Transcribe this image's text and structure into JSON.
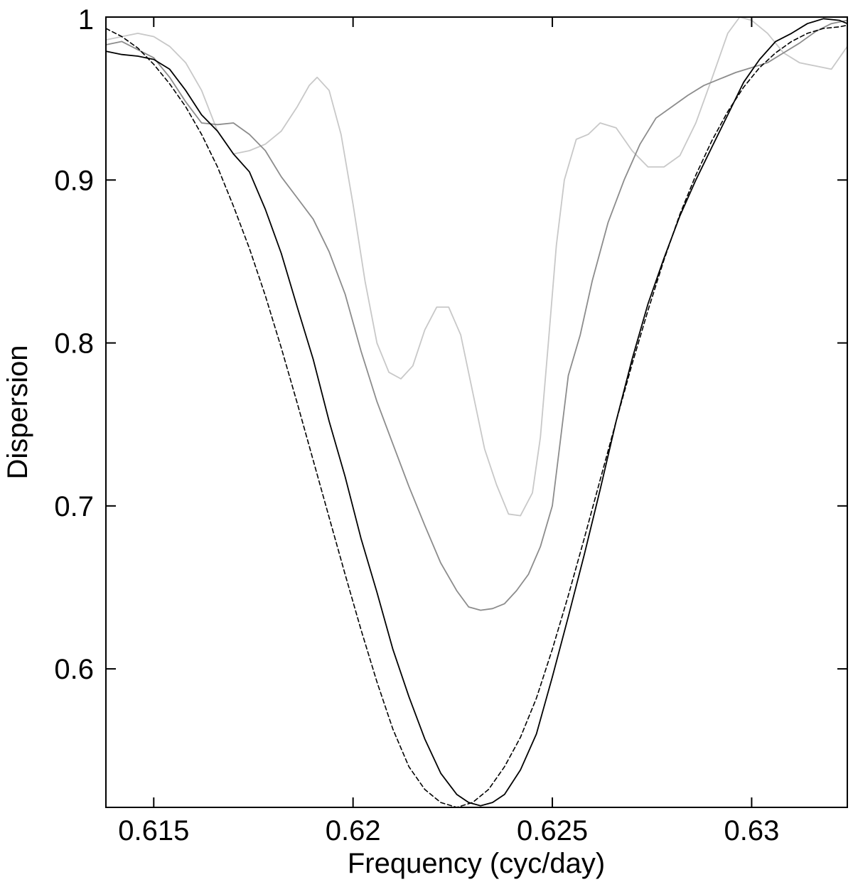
{
  "chart_data": {
    "type": "line",
    "title": "",
    "xlabel": "Frequency (cyc/day)",
    "ylabel": "Dispersion",
    "xlim": [
      0.6138,
      0.6324
    ],
    "ylim": [
      0.515,
      1.0
    ],
    "grid": false,
    "legend": "none",
    "x_ticks": [
      0.615,
      0.62,
      0.625,
      0.63
    ],
    "x_tick_labels": [
      "0.615",
      "0.62",
      "0.625",
      "0.63"
    ],
    "y_ticks": [
      0.6,
      0.7,
      0.8,
      0.9,
      1.0
    ],
    "y_tick_labels": [
      "0.6",
      "0.7",
      "0.8",
      "0.9",
      "1"
    ],
    "series": [
      {
        "style": "solid",
        "color": "#c8c8c8",
        "points": [
          [
            0.6138,
            0.986
          ],
          [
            0.6142,
            0.988
          ],
          [
            0.6146,
            0.99
          ],
          [
            0.615,
            0.988
          ],
          [
            0.6154,
            0.982
          ],
          [
            0.6158,
            0.972
          ],
          [
            0.6162,
            0.955
          ],
          [
            0.6166,
            0.93
          ],
          [
            0.617,
            0.916
          ],
          [
            0.6174,
            0.918
          ],
          [
            0.6178,
            0.922
          ],
          [
            0.6182,
            0.93
          ],
          [
            0.6186,
            0.945
          ],
          [
            0.6189,
            0.958
          ],
          [
            0.6191,
            0.963
          ],
          [
            0.6194,
            0.955
          ],
          [
            0.6197,
            0.928
          ],
          [
            0.62,
            0.885
          ],
          [
            0.6203,
            0.838
          ],
          [
            0.6206,
            0.8
          ],
          [
            0.6209,
            0.782
          ],
          [
            0.6212,
            0.778
          ],
          [
            0.6215,
            0.786
          ],
          [
            0.6218,
            0.808
          ],
          [
            0.6221,
            0.822
          ],
          [
            0.6224,
            0.822
          ],
          [
            0.6227,
            0.805
          ],
          [
            0.623,
            0.77
          ],
          [
            0.6233,
            0.735
          ],
          [
            0.6236,
            0.713
          ],
          [
            0.6239,
            0.695
          ],
          [
            0.6242,
            0.694
          ],
          [
            0.6245,
            0.708
          ],
          [
            0.6247,
            0.742
          ],
          [
            0.6249,
            0.8
          ],
          [
            0.6251,
            0.86
          ],
          [
            0.6253,
            0.9
          ],
          [
            0.6256,
            0.925
          ],
          [
            0.6259,
            0.928
          ],
          [
            0.6262,
            0.935
          ],
          [
            0.6266,
            0.932
          ],
          [
            0.627,
            0.918
          ],
          [
            0.6274,
            0.908
          ],
          [
            0.6278,
            0.908
          ],
          [
            0.6282,
            0.915
          ],
          [
            0.6286,
            0.935
          ],
          [
            0.629,
            0.962
          ],
          [
            0.6294,
            0.99
          ],
          [
            0.6297,
            1.0
          ],
          [
            0.63,
            0.998
          ],
          [
            0.6304,
            0.99
          ],
          [
            0.6308,
            0.978
          ],
          [
            0.6312,
            0.972
          ],
          [
            0.6316,
            0.97
          ],
          [
            0.632,
            0.968
          ],
          [
            0.6324,
            0.982
          ]
        ]
      },
      {
        "style": "solid",
        "color": "#8c8c8c",
        "points": [
          [
            0.6138,
            0.983
          ],
          [
            0.6142,
            0.985
          ],
          [
            0.6146,
            0.98
          ],
          [
            0.615,
            0.975
          ],
          [
            0.6154,
            0.963
          ],
          [
            0.6158,
            0.948
          ],
          [
            0.6162,
            0.935
          ],
          [
            0.6166,
            0.934
          ],
          [
            0.617,
            0.935
          ],
          [
            0.6174,
            0.928
          ],
          [
            0.6178,
            0.918
          ],
          [
            0.6182,
            0.902
          ],
          [
            0.6186,
            0.889
          ],
          [
            0.619,
            0.876
          ],
          [
            0.6194,
            0.856
          ],
          [
            0.6198,
            0.83
          ],
          [
            0.6202,
            0.795
          ],
          [
            0.6206,
            0.764
          ],
          [
            0.621,
            0.738
          ],
          [
            0.6214,
            0.712
          ],
          [
            0.6218,
            0.688
          ],
          [
            0.6222,
            0.665
          ],
          [
            0.6226,
            0.648
          ],
          [
            0.6229,
            0.638
          ],
          [
            0.6232,
            0.636
          ],
          [
            0.6235,
            0.637
          ],
          [
            0.6238,
            0.64
          ],
          [
            0.6241,
            0.648
          ],
          [
            0.6244,
            0.658
          ],
          [
            0.6247,
            0.675
          ],
          [
            0.625,
            0.7
          ],
          [
            0.6252,
            0.74
          ],
          [
            0.6254,
            0.78
          ],
          [
            0.6257,
            0.805
          ],
          [
            0.626,
            0.838
          ],
          [
            0.6264,
            0.874
          ],
          [
            0.6268,
            0.9
          ],
          [
            0.6272,
            0.922
          ],
          [
            0.6276,
            0.938
          ],
          [
            0.628,
            0.945
          ],
          [
            0.6284,
            0.952
          ],
          [
            0.6288,
            0.958
          ],
          [
            0.6292,
            0.962
          ],
          [
            0.6296,
            0.966
          ],
          [
            0.63,
            0.969
          ],
          [
            0.6304,
            0.972
          ],
          [
            0.6308,
            0.978
          ],
          [
            0.6312,
            0.984
          ],
          [
            0.6316,
            0.991
          ],
          [
            0.632,
            0.996
          ],
          [
            0.6324,
            0.998
          ]
        ]
      },
      {
        "style": "solid",
        "color": "#000000",
        "points": [
          [
            0.6138,
            0.979
          ],
          [
            0.6142,
            0.977
          ],
          [
            0.6146,
            0.976
          ],
          [
            0.615,
            0.974
          ],
          [
            0.6154,
            0.968
          ],
          [
            0.6158,
            0.955
          ],
          [
            0.6162,
            0.94
          ],
          [
            0.6166,
            0.93
          ],
          [
            0.617,
            0.916
          ],
          [
            0.6174,
            0.905
          ],
          [
            0.6178,
            0.882
          ],
          [
            0.6182,
            0.855
          ],
          [
            0.6186,
            0.822
          ],
          [
            0.619,
            0.79
          ],
          [
            0.6194,
            0.752
          ],
          [
            0.6198,
            0.718
          ],
          [
            0.6202,
            0.68
          ],
          [
            0.6206,
            0.647
          ],
          [
            0.621,
            0.612
          ],
          [
            0.6214,
            0.583
          ],
          [
            0.6218,
            0.557
          ],
          [
            0.6222,
            0.536
          ],
          [
            0.6226,
            0.523
          ],
          [
            0.6229,
            0.518
          ],
          [
            0.6232,
            0.516
          ],
          [
            0.6235,
            0.518
          ],
          [
            0.6238,
            0.523
          ],
          [
            0.6242,
            0.538
          ],
          [
            0.6246,
            0.56
          ],
          [
            0.625,
            0.595
          ],
          [
            0.6254,
            0.632
          ],
          [
            0.6258,
            0.67
          ],
          [
            0.6262,
            0.71
          ],
          [
            0.6266,
            0.752
          ],
          [
            0.627,
            0.79
          ],
          [
            0.6274,
            0.824
          ],
          [
            0.6278,
            0.852
          ],
          [
            0.6282,
            0.878
          ],
          [
            0.6286,
            0.9
          ],
          [
            0.629,
            0.92
          ],
          [
            0.6294,
            0.94
          ],
          [
            0.6298,
            0.96
          ],
          [
            0.6302,
            0.974
          ],
          [
            0.6306,
            0.985
          ],
          [
            0.631,
            0.99
          ],
          [
            0.6314,
            0.996
          ],
          [
            0.6318,
            0.999
          ],
          [
            0.6322,
            0.998
          ],
          [
            0.6324,
            0.996
          ]
        ]
      },
      {
        "style": "dashed",
        "color": "#000000",
        "points": [
          [
            0.6138,
            0.993
          ],
          [
            0.6142,
            0.988
          ],
          [
            0.6146,
            0.981
          ],
          [
            0.615,
            0.971
          ],
          [
            0.6154,
            0.959
          ],
          [
            0.6158,
            0.945
          ],
          [
            0.6162,
            0.928
          ],
          [
            0.6166,
            0.908
          ],
          [
            0.617,
            0.884
          ],
          [
            0.6174,
            0.858
          ],
          [
            0.6178,
            0.829
          ],
          [
            0.6182,
            0.797
          ],
          [
            0.6186,
            0.763
          ],
          [
            0.619,
            0.728
          ],
          [
            0.6194,
            0.693
          ],
          [
            0.6198,
            0.658
          ],
          [
            0.6202,
            0.624
          ],
          [
            0.6206,
            0.592
          ],
          [
            0.621,
            0.563
          ],
          [
            0.6214,
            0.54
          ],
          [
            0.6218,
            0.526
          ],
          [
            0.6222,
            0.518
          ],
          [
            0.6226,
            0.515
          ],
          [
            0.623,
            0.518
          ],
          [
            0.6234,
            0.526
          ],
          [
            0.6238,
            0.54
          ],
          [
            0.6242,
            0.558
          ],
          [
            0.6246,
            0.582
          ],
          [
            0.625,
            0.612
          ],
          [
            0.6254,
            0.645
          ],
          [
            0.6258,
            0.68
          ],
          [
            0.6262,
            0.716
          ],
          [
            0.6266,
            0.752
          ],
          [
            0.627,
            0.787
          ],
          [
            0.6274,
            0.82
          ],
          [
            0.6278,
            0.851
          ],
          [
            0.6282,
            0.879
          ],
          [
            0.6286,
            0.903
          ],
          [
            0.629,
            0.924
          ],
          [
            0.6294,
            0.942
          ],
          [
            0.6298,
            0.957
          ],
          [
            0.6302,
            0.969
          ],
          [
            0.6306,
            0.978
          ],
          [
            0.631,
            0.985
          ],
          [
            0.6314,
            0.99
          ],
          [
            0.6318,
            0.993
          ],
          [
            0.6322,
            0.994
          ],
          [
            0.6324,
            0.995
          ]
        ]
      }
    ]
  }
}
